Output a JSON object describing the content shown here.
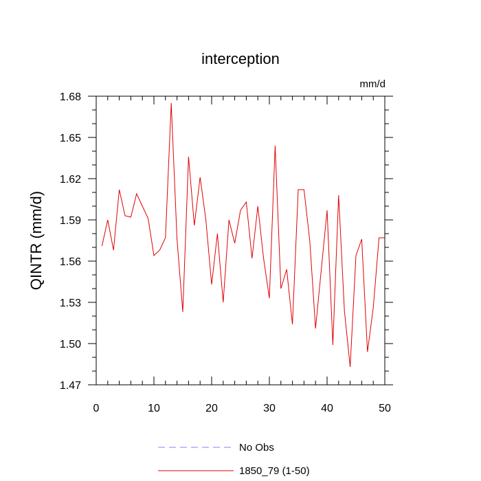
{
  "chart_data": {
    "type": "line",
    "title": "interception",
    "units": "mm/d",
    "ylabel": "QINTR  (mm/d)",
    "xlabel": "",
    "xlim": [
      0,
      50
    ],
    "ylim": [
      1.47,
      1.68
    ],
    "xticks": [
      0,
      10,
      20,
      30,
      40,
      50
    ],
    "yticks": [
      1.47,
      1.5,
      1.53,
      1.56,
      1.59,
      1.62,
      1.65,
      1.68
    ],
    "ytick_labels": [
      "1.47",
      "1.50",
      "1.53",
      "1.56",
      "1.59",
      "1.62",
      "1.65",
      "1.68"
    ],
    "xtick_labels": [
      "0",
      "10",
      "20",
      "30",
      "40",
      "50"
    ],
    "legend": [
      {
        "name": "No Obs",
        "color": "#8080ff",
        "style": "dashed"
      },
      {
        "name": "1850_79 (1-50)",
        "color": "#e00000",
        "style": "solid"
      }
    ],
    "series": [
      {
        "name": "1850_79 (1-50)",
        "color": "#e00000",
        "x": [
          1,
          2,
          3,
          4,
          5,
          6,
          7,
          8,
          9,
          10,
          11,
          12,
          13,
          14,
          15,
          16,
          17,
          18,
          19,
          20,
          21,
          22,
          23,
          24,
          25,
          26,
          27,
          28,
          29,
          30,
          31,
          32,
          33,
          34,
          35,
          36,
          37,
          38,
          39,
          40,
          41,
          42,
          43,
          44,
          45,
          46,
          47,
          48,
          49,
          50
        ],
        "values": [
          1.571,
          1.59,
          1.568,
          1.612,
          1.593,
          1.592,
          1.609,
          1.6,
          1.591,
          1.564,
          1.568,
          1.577,
          1.675,
          1.576,
          1.523,
          1.636,
          1.586,
          1.621,
          1.59,
          1.543,
          1.58,
          1.53,
          1.59,
          1.573,
          1.597,
          1.603,
          1.562,
          1.6,
          1.562,
          1.533,
          1.644,
          1.54,
          1.554,
          1.514,
          1.612,
          1.612,
          1.575,
          1.511,
          1.554,
          1.597,
          1.499,
          1.608,
          1.524,
          1.483,
          1.564,
          1.576,
          1.494,
          1.526,
          1.577,
          1.577
        ]
      }
    ]
  }
}
